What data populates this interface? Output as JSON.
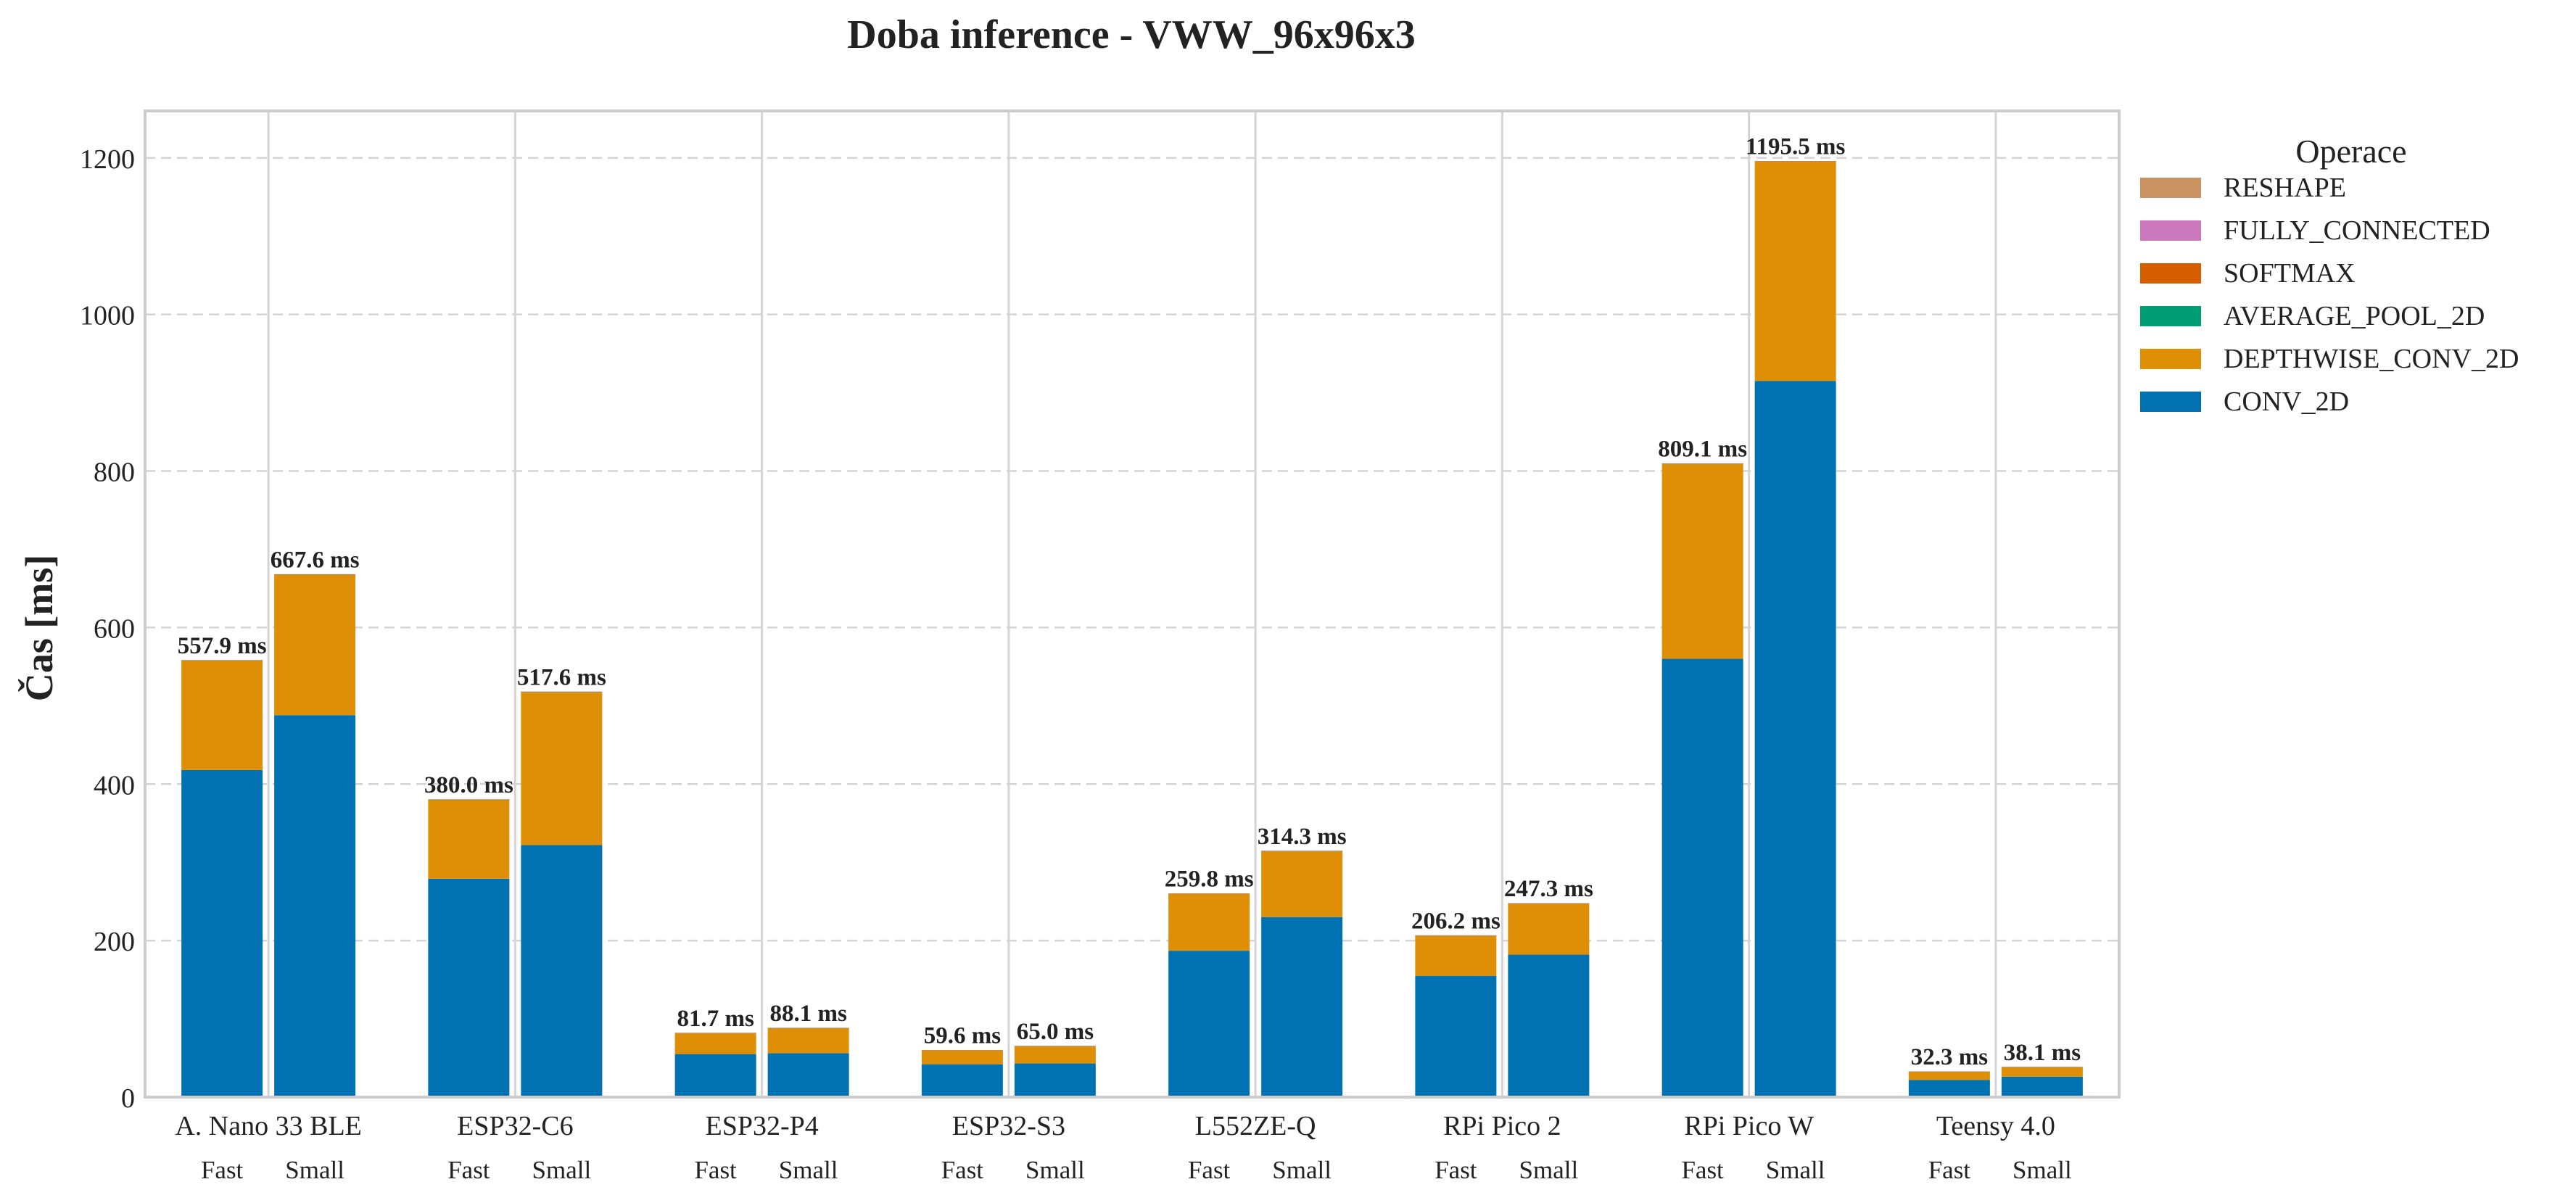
{
  "chart_data": {
    "type": "bar",
    "stacked": true,
    "title": "Doba inference - VWW_96x96x3",
    "xlabel": "",
    "ylabel": "Čas [ms]",
    "ylim": [
      0,
      1260
    ],
    "yticks": [
      0,
      200,
      400,
      600,
      800,
      1000,
      1200
    ],
    "grid": true,
    "legend": {
      "title": "Operace",
      "placement": "outside-right-top"
    },
    "groups": [
      "A. Nano 33 BLE",
      "ESP32-C6",
      "ESP32-P4",
      "ESP32-S3",
      "L552ZE-Q",
      "RPi Pico 2",
      "RPi Pico W",
      "Teensy 4.0"
    ],
    "variants": [
      "Fast",
      "Small"
    ],
    "series": [
      {
        "name": "CONV_2D",
        "color": "#0072b2",
        "values": [
          [
            418.0,
            488.0
          ],
          [
            279.0,
            322.0
          ],
          [
            55.0,
            56.0
          ],
          [
            42.0,
            43.0
          ],
          [
            187.0,
            230.0
          ],
          [
            155.0,
            182.0
          ],
          [
            560.0,
            915.0
          ],
          [
            22.0,
            26.0
          ]
        ]
      },
      {
        "name": "DEPTHWISE_CONV_2D",
        "color": "#de8f05",
        "values": [
          [
            139.4,
            179.1
          ],
          [
            100.5,
            195.1
          ],
          [
            26.4,
            31.8
          ],
          [
            17.3,
            21.7
          ],
          [
            72.5,
            83.9
          ],
          [
            50.9,
            64.9
          ],
          [
            248.7,
            280.1
          ],
          [
            10.1,
            11.9
          ]
        ]
      },
      {
        "name": "AVERAGE_POOL_2D",
        "color": "#029e73",
        "values": [
          [
            0.3,
            0.3
          ],
          [
            0.3,
            0.3
          ],
          [
            0.1,
            0.1
          ],
          [
            0.1,
            0.1
          ],
          [
            0.2,
            0.2
          ],
          [
            0.2,
            0.2
          ],
          [
            0.2,
            0.2
          ],
          [
            0.1,
            0.1
          ]
        ]
      },
      {
        "name": "SOFTMAX",
        "color": "#d55e00",
        "values": [
          [
            0.1,
            0.1
          ],
          [
            0.1,
            0.1
          ],
          [
            0.1,
            0.1
          ],
          [
            0.1,
            0.1
          ],
          [
            0.05,
            0.1
          ],
          [
            0.05,
            0.1
          ],
          [
            0.1,
            0.1
          ],
          [
            0.05,
            0.05
          ]
        ]
      },
      {
        "name": "FULLY_CONNECTED",
        "color": "#cc78bc",
        "values": [
          [
            0.05,
            0.05
          ],
          [
            0.05,
            0.05
          ],
          [
            0.05,
            0.05
          ],
          [
            0.05,
            0.05
          ],
          [
            0.03,
            0.05
          ],
          [
            0.03,
            0.05
          ],
          [
            0.05,
            0.05
          ],
          [
            0.03,
            0.03
          ]
        ]
      },
      {
        "name": "RESHAPE",
        "color": "#ca9161",
        "values": [
          [
            0.05,
            0.05
          ],
          [
            0.05,
            0.05
          ],
          [
            0.05,
            0.05
          ],
          [
            0.05,
            0.05
          ],
          [
            0.02,
            0.05
          ],
          [
            0.02,
            0.05
          ],
          [
            0.05,
            0.05
          ],
          [
            0.02,
            0.02
          ]
        ]
      }
    ],
    "legend_order": [
      "RESHAPE",
      "FULLY_CONNECTED",
      "SOFTMAX",
      "AVERAGE_POOL_2D",
      "DEPTHWISE_CONV_2D",
      "CONV_2D"
    ],
    "totals": [
      [
        "557.9 ms",
        "667.6 ms"
      ],
      [
        "380.0 ms",
        "517.6 ms"
      ],
      [
        "81.7 ms",
        "88.1 ms"
      ],
      [
        "59.6 ms",
        "65.0 ms"
      ],
      [
        "259.8 ms",
        "314.3 ms"
      ],
      [
        "206.2 ms",
        "247.3 ms"
      ],
      [
        "809.1 ms",
        "1195.5 ms"
      ],
      [
        "32.3 ms",
        "38.1 ms"
      ]
    ],
    "total_values": [
      [
        557.9,
        667.6
      ],
      [
        380.0,
        517.6
      ],
      [
        81.7,
        88.1
      ],
      [
        59.6,
        65.0
      ],
      [
        259.8,
        314.3
      ],
      [
        206.2,
        247.3
      ],
      [
        809.1,
        1195.5
      ],
      [
        32.3,
        38.1
      ]
    ]
  }
}
